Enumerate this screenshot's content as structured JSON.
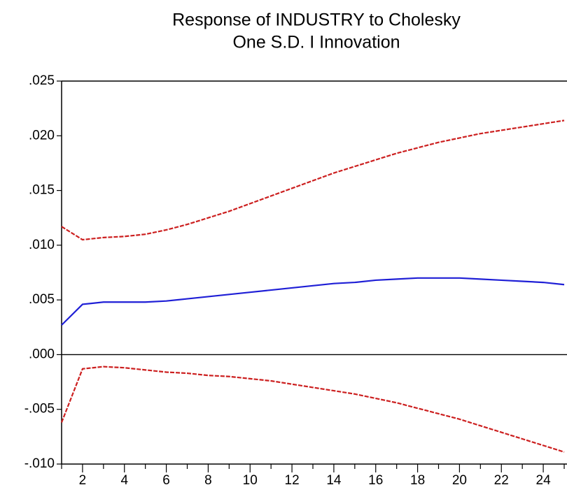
{
  "chart_data": {
    "type": "line",
    "title": [
      "Response of INDUSTRY to Cholesky",
      "One S.D. I Innovation"
    ],
    "x": [
      1,
      2,
      3,
      4,
      5,
      6,
      7,
      8,
      9,
      10,
      11,
      12,
      13,
      14,
      15,
      16,
      17,
      18,
      19,
      20,
      21,
      22,
      23,
      24,
      25
    ],
    "series": [
      {
        "color": "#cc1f1f",
        "linestyle": "dashed",
        "values": [
          0.0117,
          0.0105,
          0.0107,
          0.0108,
          0.011,
          0.0114,
          0.0119,
          0.0125,
          0.0131,
          0.0138,
          0.0145,
          0.0152,
          0.0159,
          0.0166,
          0.0172,
          0.0178,
          0.0184,
          0.0189,
          0.0194,
          0.0198,
          0.0202,
          0.0205,
          0.0208,
          0.0211,
          0.0214
        ]
      },
      {
        "color": "#1f1fd6",
        "linestyle": "solid",
        "values": [
          0.0027,
          0.0046,
          0.0048,
          0.0048,
          0.0048,
          0.0049,
          0.0051,
          0.0053,
          0.0055,
          0.0057,
          0.0059,
          0.0061,
          0.0063,
          0.0065,
          0.0066,
          0.0068,
          0.0069,
          0.007,
          0.007,
          0.007,
          0.0069,
          0.0068,
          0.0067,
          0.0066,
          0.0064
        ]
      },
      {
        "color": "#cc1f1f",
        "linestyle": "dashed",
        "values": [
          -0.0062,
          -0.0013,
          -0.0011,
          -0.0012,
          -0.0014,
          -0.0016,
          -0.0017,
          -0.0019,
          -0.002,
          -0.0022,
          -0.0024,
          -0.0027,
          -0.003,
          -0.0033,
          -0.0036,
          -0.004,
          -0.0044,
          -0.0049,
          -0.0054,
          -0.0059,
          -0.0065,
          -0.0071,
          -0.0077,
          -0.0083,
          -0.0089
        ]
      }
    ],
    "xlim": [
      1,
      25
    ],
    "xticks": [
      2,
      4,
      6,
      8,
      10,
      12,
      14,
      16,
      18,
      20,
      22,
      24
    ],
    "xminorticks": [
      1,
      3,
      5,
      7,
      9,
      11,
      13,
      15,
      17,
      19,
      21,
      23,
      25
    ],
    "ylim": [
      -0.01,
      0.025
    ],
    "yticks": [
      {
        "value": -0.01,
        "label": "-.010"
      },
      {
        "value": -0.005,
        "label": "-.005"
      },
      {
        "value": 0,
        "label": ".000"
      },
      {
        "value": 0.005,
        "label": ".005"
      },
      {
        "value": 0.01,
        "label": ".010"
      },
      {
        "value": 0.015,
        "label": ".015"
      },
      {
        "value": 0.02,
        "label": ".020"
      },
      {
        "value": 0.025,
        "label": ".025"
      }
    ],
    "zero_line": true
  }
}
